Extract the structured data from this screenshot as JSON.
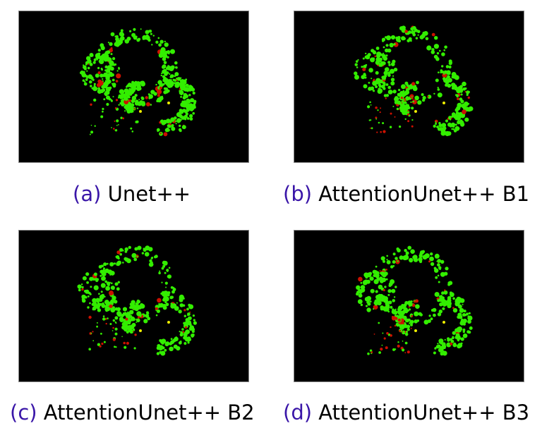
{
  "figure": {
    "panels": [
      {
        "id": "a",
        "tag": "(a)",
        "name": "Unet++"
      },
      {
        "id": "b",
        "tag": "(b)",
        "name": "AttentionUnet++ B1"
      },
      {
        "id": "c",
        "tag": "(c)",
        "name": "AttentionUnet++ B2"
      },
      {
        "id": "d",
        "tag": "(d)",
        "name": "AttentionUnet++ B3"
      }
    ],
    "colors": {
      "background": "#000000",
      "true_positive": "#33ee00",
      "false_positive": "#cc1100",
      "highlight": "#eeee00",
      "tag_text": "#3a16a8"
    }
  }
}
